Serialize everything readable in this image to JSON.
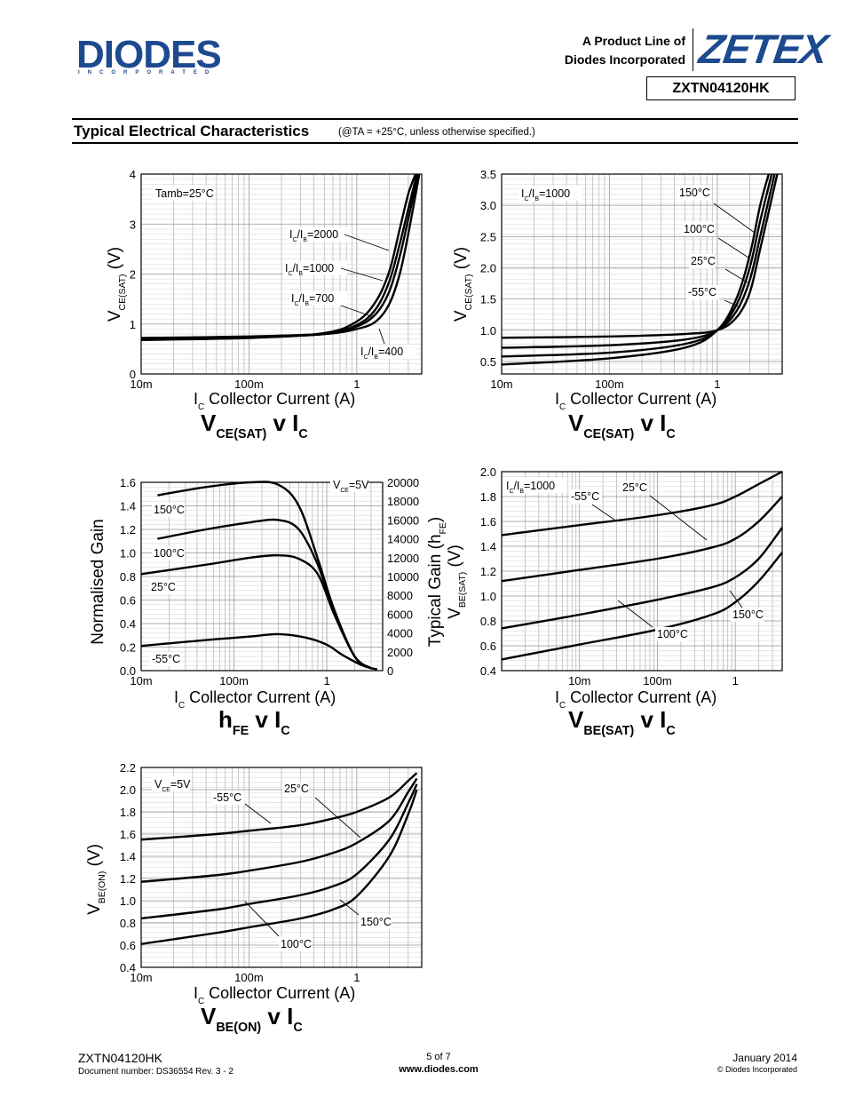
{
  "header": {
    "logo_text": "DIODES",
    "logo_sub": "INCORPORATED",
    "product_line_1": "A Product Line of",
    "product_line_2": "Diodes Incorporated",
    "brand": "ZETEX",
    "part_number": "ZXTN04120HK",
    "brand_color": "#1d4a8f"
  },
  "section": {
    "title": "Typical Electrical Characteristics",
    "condition": "(@TA = +25°C, unless otherwise specified.)"
  },
  "footer": {
    "part": "ZXTN04120HK",
    "document": "Document number: DS36554 Rev. 3 - 2",
    "page": "5 of 7",
    "url": "www.diodes.com",
    "date": "January 2014",
    "copyright": "© Diodes Incorporated"
  },
  "chart_data": [
    {
      "type": "line",
      "id": "c1",
      "caption": "VCE(SAT) v IC",
      "xlabel": "IC Collector Current (A)",
      "ylabel": "VCE(SAT) (V)",
      "xscale": "log",
      "xlim": [
        0.01,
        4
      ],
      "ylim": [
        0,
        4
      ],
      "xticks": [
        {
          "v": 0.01,
          "t": "10m"
        },
        {
          "v": 0.1,
          "t": "100m"
        },
        {
          "v": 1,
          "t": "1"
        }
      ],
      "yticks": [
        {
          "v": 0,
          "t": "0"
        },
        {
          "v": 1,
          "t": "1"
        },
        {
          "v": 2,
          "t": "2"
        },
        {
          "v": 3,
          "t": "3"
        },
        {
          "v": 4,
          "t": "4"
        }
      ],
      "annotation": "Tamb=25°C",
      "series": [
        {
          "name": "IC/IB=2000",
          "x": [
            0.01,
            0.1,
            0.5,
            1,
            1.5,
            2,
            2.5,
            3,
            3.5
          ],
          "y": [
            0.68,
            0.72,
            0.82,
            1.05,
            1.45,
            2.05,
            2.9,
            3.6,
            4.0
          ]
        },
        {
          "name": "IC/IB=1000",
          "x": [
            0.01,
            0.1,
            0.5,
            1,
            1.5,
            2,
            2.5,
            3,
            3.6
          ],
          "y": [
            0.7,
            0.73,
            0.8,
            0.98,
            1.3,
            1.85,
            2.6,
            3.3,
            4.0
          ]
        },
        {
          "name": "IC/IB=700",
          "x": [
            0.01,
            0.1,
            0.5,
            1,
            1.5,
            2,
            2.5,
            3,
            3.7
          ],
          "y": [
            0.7,
            0.74,
            0.8,
            0.95,
            1.2,
            1.65,
            2.35,
            3.1,
            4.0
          ]
        },
        {
          "name": "IC/IB=400",
          "x": [
            0.01,
            0.1,
            0.5,
            1,
            1.5,
            2,
            2.5,
            3,
            3.8
          ],
          "y": [
            0.72,
            0.75,
            0.8,
            0.9,
            1.05,
            1.4,
            2.0,
            2.8,
            4.0
          ]
        }
      ]
    },
    {
      "type": "line",
      "id": "c2",
      "caption": "VCE(SAT) v IC",
      "xlabel": "IC Collector Current (A)",
      "ylabel": "VCE(SAT) (V)",
      "xscale": "log",
      "xlim": [
        0.01,
        4
      ],
      "ylim": [
        0.3,
        3.5
      ],
      "xticks": [
        {
          "v": 0.01,
          "t": "10m"
        },
        {
          "v": 0.1,
          "t": "100m"
        },
        {
          "v": 1,
          "t": "1"
        }
      ],
      "yticks": [
        {
          "v": 0.5,
          "t": "0.5"
        },
        {
          "v": 1.0,
          "t": "1.0"
        },
        {
          "v": 1.5,
          "t": "1.5"
        },
        {
          "v": 2.0,
          "t": "2.0"
        },
        {
          "v": 2.5,
          "t": "2.5"
        },
        {
          "v": 3.0,
          "t": "3.0"
        },
        {
          "v": 3.5,
          "t": "3.5"
        }
      ],
      "annotation": "IC/IB=1000",
      "series": [
        {
          "name": "150°C",
          "x": [
            0.01,
            0.1,
            0.5,
            1,
            1.5,
            2,
            2.5,
            3
          ],
          "y": [
            0.45,
            0.55,
            0.72,
            1.0,
            1.5,
            2.2,
            3.0,
            3.5
          ]
        },
        {
          "name": "100°C",
          "x": [
            0.01,
            0.1,
            0.5,
            1,
            1.5,
            2,
            2.5,
            3.2
          ],
          "y": [
            0.58,
            0.64,
            0.78,
            1.0,
            1.4,
            2.0,
            2.75,
            3.5
          ]
        },
        {
          "name": "25°C",
          "x": [
            0.01,
            0.1,
            0.5,
            1,
            1.5,
            2,
            2.5,
            3.4
          ],
          "y": [
            0.72,
            0.76,
            0.85,
            1.0,
            1.3,
            1.8,
            2.5,
            3.5
          ]
        },
        {
          "name": "-55°C",
          "x": [
            0.01,
            0.1,
            0.5,
            1,
            1.5,
            2,
            2.5,
            3.6
          ],
          "y": [
            0.88,
            0.9,
            0.94,
            1.0,
            1.2,
            1.6,
            2.3,
            3.5
          ]
        }
      ]
    },
    {
      "type": "line",
      "id": "c3",
      "caption": "hFE v IC",
      "xlabel": "IC Collector Current (A)",
      "ylabel": "Normalised Gain",
      "ylabel2": "Typical Gain (hFE)",
      "xscale": "log",
      "xlim": [
        0.01,
        4
      ],
      "ylim": [
        0,
        1.6
      ],
      "xticks": [
        {
          "v": 0.01,
          "t": "10m"
        },
        {
          "v": 0.1,
          "t": "100m"
        },
        {
          "v": 1,
          "t": "1"
        }
      ],
      "yticks": [
        {
          "v": 0,
          "t": "0.0"
        },
        {
          "v": 0.2,
          "t": "0.2"
        },
        {
          "v": 0.4,
          "t": "0.4"
        },
        {
          "v": 0.6,
          "t": "0.6"
        },
        {
          "v": 0.8,
          "t": "0.8"
        },
        {
          "v": 1.0,
          "t": "1.0"
        },
        {
          "v": 1.2,
          "t": "1.2"
        },
        {
          "v": 1.4,
          "t": "1.4"
        },
        {
          "v": 1.6,
          "t": "1.6"
        }
      ],
      "y2ticks": [
        "0",
        "2000",
        "4000",
        "6000",
        "8000",
        "10000",
        "12000",
        "14000",
        "16000",
        "18000",
        "20000"
      ],
      "annotation": "VCE=5V",
      "series": [
        {
          "name": "150°C",
          "x": [
            0.015,
            0.05,
            0.15,
            0.3,
            0.5,
            0.8,
            1.2,
            2,
            3
          ],
          "y": [
            1.49,
            1.56,
            1.6,
            1.58,
            1.4,
            0.95,
            0.52,
            0.12,
            0.02
          ]
        },
        {
          "name": "100°C",
          "x": [
            0.015,
            0.05,
            0.15,
            0.3,
            0.5,
            0.8,
            1.2,
            2,
            3
          ],
          "y": [
            1.12,
            1.2,
            1.26,
            1.28,
            1.2,
            0.9,
            0.5,
            0.12,
            0.02
          ]
        },
        {
          "name": "25°C",
          "x": [
            0.01,
            0.05,
            0.15,
            0.3,
            0.5,
            0.8,
            1.2,
            2,
            3
          ],
          "y": [
            0.82,
            0.9,
            0.96,
            0.98,
            0.95,
            0.82,
            0.48,
            0.12,
            0.02
          ]
        },
        {
          "name": "-55°C",
          "x": [
            0.01,
            0.05,
            0.15,
            0.3,
            0.6,
            1,
            1.5,
            2.5,
            3.5
          ],
          "y": [
            0.21,
            0.26,
            0.29,
            0.31,
            0.28,
            0.22,
            0.13,
            0.04,
            0.01
          ]
        }
      ]
    },
    {
      "type": "line",
      "id": "c4",
      "caption": "VBE(SAT) v IC",
      "xlabel": "IC Collector Current (A)",
      "ylabel": "VBE(SAT) (V)",
      "xscale": "log",
      "xlim": [
        0.001,
        4
      ],
      "ylim": [
        0.4,
        2.0
      ],
      "xticks": [
        {
          "v": 0.01,
          "t": "10m"
        },
        {
          "v": 0.1,
          "t": "100m"
        },
        {
          "v": 1,
          "t": "1"
        }
      ],
      "yticks": [
        {
          "v": 0.4,
          "t": "0.4"
        },
        {
          "v": 0.6,
          "t": "0.6"
        },
        {
          "v": 0.8,
          "t": "0.8"
        },
        {
          "v": 1.0,
          "t": "1.0"
        },
        {
          "v": 1.2,
          "t": "1.2"
        },
        {
          "v": 1.4,
          "t": "1.4"
        },
        {
          "v": 1.6,
          "t": "1.6"
        },
        {
          "v": 1.8,
          "t": "1.8"
        },
        {
          "v": 2.0,
          "t": "2.0"
        }
      ],
      "annotation": "IC/IB=1000",
      "series": [
        {
          "name": "-55°C",
          "x": [
            0.001,
            0.01,
            0.1,
            0.5,
            1,
            2,
            4
          ],
          "y": [
            1.49,
            1.57,
            1.65,
            1.73,
            1.8,
            1.9,
            2.05
          ]
        },
        {
          "name": "25°C",
          "x": [
            0.001,
            0.01,
            0.1,
            0.5,
            1,
            2,
            4
          ],
          "y": [
            1.12,
            1.21,
            1.3,
            1.39,
            1.46,
            1.6,
            1.8
          ]
        },
        {
          "name": "100°C",
          "x": [
            0.001,
            0.01,
            0.1,
            0.5,
            1,
            2,
            4
          ],
          "y": [
            0.74,
            0.85,
            0.97,
            1.07,
            1.15,
            1.3,
            1.55
          ]
        },
        {
          "name": "150°C",
          "x": [
            0.001,
            0.01,
            0.1,
            0.5,
            1,
            2,
            4
          ],
          "y": [
            0.49,
            0.61,
            0.73,
            0.85,
            0.95,
            1.12,
            1.35
          ]
        }
      ]
    },
    {
      "type": "line",
      "id": "c5",
      "caption": "VBE(ON) v IC",
      "xlabel": "IC Collector Current (A)",
      "ylabel": "VBE(ON) (V)",
      "xscale": "log",
      "xlim": [
        0.01,
        4
      ],
      "ylim": [
        0.4,
        2.2
      ],
      "xticks": [
        {
          "v": 0.01,
          "t": "10m"
        },
        {
          "v": 0.1,
          "t": "100m"
        },
        {
          "v": 1,
          "t": "1"
        }
      ],
      "yticks": [
        {
          "v": 0.4,
          "t": "0.4"
        },
        {
          "v": 0.6,
          "t": "0.6"
        },
        {
          "v": 0.8,
          "t": "0.8"
        },
        {
          "v": 1.0,
          "t": "1.0"
        },
        {
          "v": 1.2,
          "t": "1.2"
        },
        {
          "v": 1.4,
          "t": "1.4"
        },
        {
          "v": 1.6,
          "t": "1.6"
        },
        {
          "v": 1.8,
          "t": "1.8"
        },
        {
          "v": 2.0,
          "t": "2.0"
        },
        {
          "v": 2.2,
          "t": "2.2"
        }
      ],
      "annotation": "VCE=5V",
      "series": [
        {
          "name": "-55°C",
          "x": [
            0.01,
            0.05,
            0.1,
            0.3,
            0.6,
            1,
            2,
            3,
            3.6
          ],
          "y": [
            1.55,
            1.6,
            1.63,
            1.68,
            1.74,
            1.8,
            1.93,
            2.08,
            2.15
          ]
        },
        {
          "name": "25°C",
          "x": [
            0.01,
            0.05,
            0.1,
            0.3,
            0.6,
            1,
            2,
            3,
            3.6
          ],
          "y": [
            1.17,
            1.23,
            1.27,
            1.35,
            1.43,
            1.52,
            1.72,
            1.98,
            2.1
          ]
        },
        {
          "name": "100°C",
          "x": [
            0.01,
            0.05,
            0.1,
            0.3,
            0.6,
            1,
            2,
            3,
            3.6
          ],
          "y": [
            0.84,
            0.92,
            0.97,
            1.05,
            1.13,
            1.24,
            1.55,
            1.88,
            2.05
          ]
        },
        {
          "name": "150°C",
          "x": [
            0.01,
            0.05,
            0.1,
            0.3,
            0.6,
            1,
            2,
            3,
            3.6
          ],
          "y": [
            0.61,
            0.71,
            0.76,
            0.84,
            0.92,
            1.04,
            1.4,
            1.78,
            2.0
          ]
        }
      ]
    }
  ]
}
